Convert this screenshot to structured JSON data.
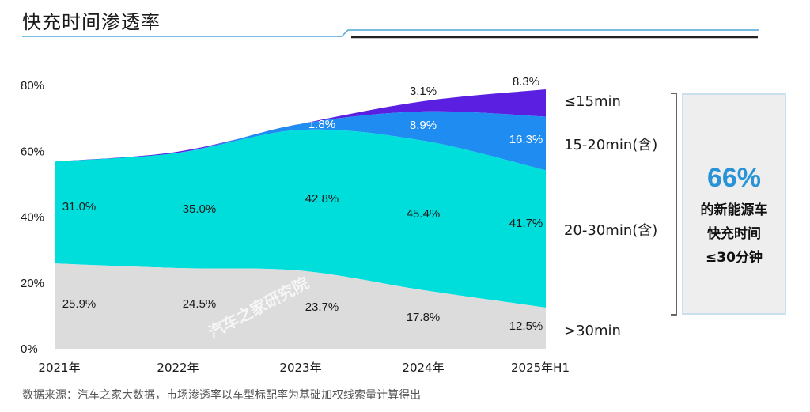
{
  "title": "快充时间渗透率",
  "source": "数据来源：汽车之家大数据，市场渗透率以车型标配率为基础加权线索量计算得出",
  "watermark": "汽车之家研究院",
  "callout": {
    "value": "66%",
    "lines": [
      "的新能源车",
      "快充时间",
      "≤30分钟"
    ]
  },
  "colors": {
    "gt30": "#dcdcdc",
    "m20_30": "#00dedc",
    "m15_20": "#1e8cf0",
    "le15": "#5a1fe0",
    "accent": "#2a93d8"
  },
  "chart_data": {
    "type": "area",
    "stacked": true,
    "categories": [
      "2021年",
      "2022年",
      "2023年",
      "2024年",
      "2025年H1"
    ],
    "y_ticks": [
      "0%",
      "20%",
      "40%",
      "60%",
      "80%"
    ],
    "ylim": [
      0,
      80
    ],
    "series": [
      {
        "name": ">30min",
        "values": [
          25.9,
          24.5,
          23.7,
          17.8,
          12.5
        ],
        "labels": [
          "25.9%",
          "24.5%",
          "23.7%",
          "17.8%",
          "12.5%"
        ]
      },
      {
        "name": "20-30min(含)",
        "values": [
          31.0,
          35.0,
          42.8,
          45.4,
          41.7
        ],
        "labels": [
          "31.0%",
          "35.0%",
          "42.8%",
          "45.4%",
          "41.7%"
        ]
      },
      {
        "name": "15-20min(含)",
        "values": [
          0,
          0,
          1.8,
          8.9,
          16.3
        ],
        "labels": [
          "",
          "",
          "1.8%",
          "8.9%",
          "16.3%"
        ]
      },
      {
        "name": "≤15min",
        "values": [
          0,
          0.4,
          0,
          3.1,
          8.3
        ],
        "labels": [
          "",
          "",
          "",
          "3.1%",
          "8.3%"
        ]
      }
    ]
  }
}
